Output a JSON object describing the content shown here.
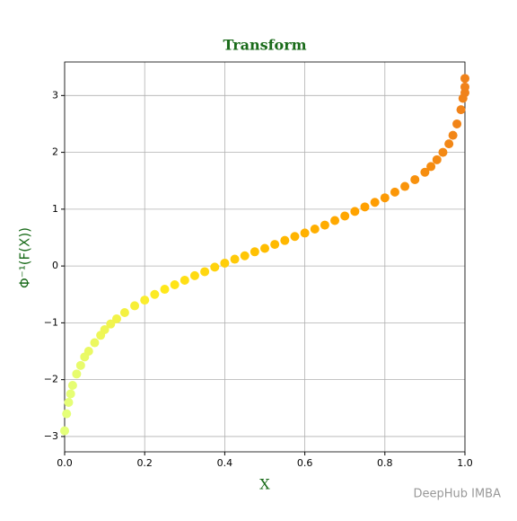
{
  "chart_data": {
    "type": "scatter",
    "title": "Transform",
    "x_label": "X",
    "y_label": "Φ⁻¹(F(X))",
    "watermark": "DeepHub IMBA",
    "colormap": [
      "#e4ff7a",
      "#ffe81a",
      "#ffbd00",
      "#ffa000",
      "#f0821a"
    ],
    "x": [
      0,
      0.005,
      0.01,
      0.015,
      0.02,
      0.03,
      0.04,
      0.05,
      0.06,
      0.075,
      0.09,
      0.1,
      0.115,
      0.13,
      0.15,
      0.175,
      0.2,
      0.225,
      0.25,
      0.275,
      0.3,
      0.325,
      0.35,
      0.375,
      0.4,
      0.425,
      0.45,
      0.475,
      0.5,
      0.525,
      0.55,
      0.575,
      0.6,
      0.625,
      0.65,
      0.675,
      0.7,
      0.725,
      0.75,
      0.775,
      0.8,
      0.825,
      0.85,
      0.875,
      0.9,
      0.915,
      0.93,
      0.945,
      0.96,
      0.97,
      0.98,
      0.99,
      0.995,
      1,
      1,
      1
    ],
    "values": [
      -2.9,
      -2.6,
      -2.4,
      -2.25,
      -2.1,
      -1.9,
      -1.75,
      -1.6,
      -1.5,
      -1.35,
      -1.22,
      -1.12,
      -1.02,
      -0.93,
      -0.82,
      -0.7,
      -0.6,
      -0.5,
      -0.41,
      -0.33,
      -0.25,
      -0.17,
      -0.1,
      -0.02,
      0.05,
      0.12,
      0.18,
      0.25,
      0.31,
      0.38,
      0.45,
      0.52,
      0.58,
      0.65,
      0.72,
      0.8,
      0.88,
      0.96,
      1.04,
      1.12,
      1.2,
      1.3,
      1.4,
      1.52,
      1.65,
      1.75,
      1.87,
      2.0,
      2.15,
      2.3,
      2.5,
      2.75,
      2.95,
      3.05,
      3.15,
      3.3
    ],
    "xlim": [
      0,
      1
    ],
    "ylim": [
      -3.27,
      3.59
    ],
    "xticks": [
      {
        "value": 0,
        "label": "0.0"
      },
      0.2,
      0.4,
      0.6,
      0.8,
      {
        "value": 1,
        "label": "1.0"
      }
    ],
    "yticks": [
      {
        "value": -3,
        "label": "−3"
      },
      {
        "value": -2,
        "label": "−2"
      },
      {
        "value": -1,
        "label": "−1"
      },
      0,
      1,
      2,
      3
    ],
    "grid": true
  }
}
